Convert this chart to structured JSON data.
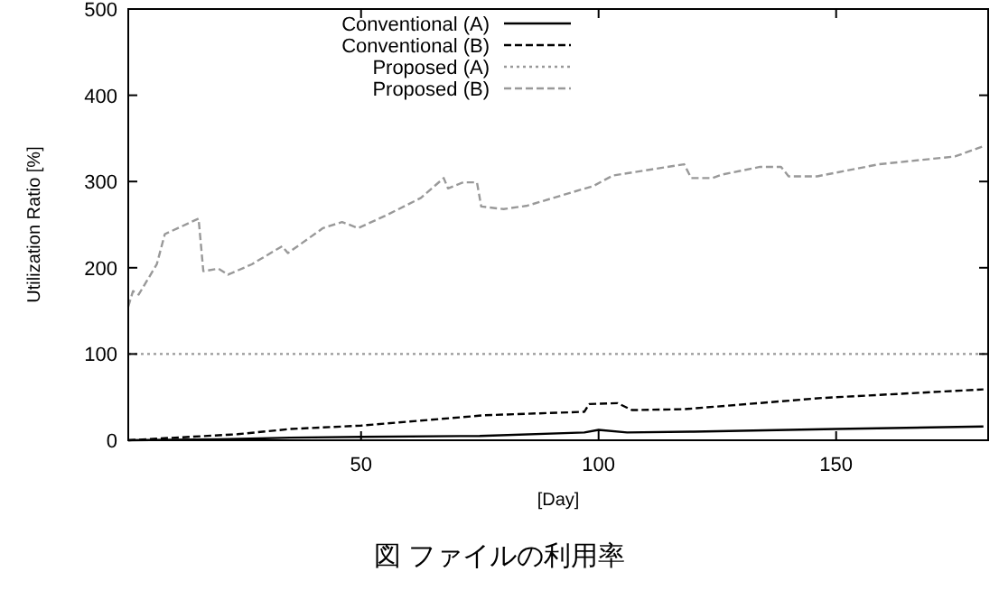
{
  "chart_data": {
    "type": "line",
    "xlabel": "[Day]",
    "ylabel": "Utilization Ratio [%]",
    "annotations": [
      "図 ファイルの利用率"
    ],
    "xlim": [
      1,
      182
    ],
    "ylim": [
      0,
      500
    ],
    "xticks": [
      50,
      100,
      150
    ],
    "yticks": [
      0,
      100,
      200,
      300,
      400,
      500
    ],
    "grid": false,
    "legend": "top left",
    "series": [
      {
        "name": "Conventional (A)",
        "color": "#000000",
        "line_style": "solid",
        "x": [
          1,
          20,
          35,
          50,
          75,
          97,
          100,
          106,
          120,
          150,
          181
        ],
        "values": [
          0,
          1,
          3,
          4,
          5,
          9,
          12,
          9,
          10,
          13,
          16
        ]
      },
      {
        "name": "Conventional (B)",
        "color": "#000000",
        "line_style": "dashed",
        "x": [
          1,
          24,
          35,
          50,
          76,
          97,
          98,
          104,
          107,
          118,
          147,
          181
        ],
        "values": [
          0,
          7,
          13,
          17,
          29,
          33,
          42,
          43,
          35,
          36,
          49,
          59
        ]
      },
      {
        "name": "Proposed (A)",
        "color": "#999999",
        "line_style": "dotted",
        "x": [
          1,
          182
        ],
        "values": [
          100,
          100
        ]
      },
      {
        "name": "Proposed (B)",
        "color": "#999999",
        "line_style": "dashed",
        "x": [
          1,
          2,
          3.2,
          7,
          8.7,
          15.8,
          16.8,
          20,
          22,
          27,
          33.4,
          34.6,
          42,
          46,
          49.4,
          55,
          62.6,
          67.4,
          68.3,
          71.5,
          74.4,
          75.3,
          80,
          85,
          99,
          103,
          118,
          119.5,
          124,
          126,
          134,
          138.4,
          140,
          146,
          159,
          175,
          181
        ],
        "values": [
          155,
          173,
          169,
          204,
          239,
          257,
          196,
          199,
          192,
          204,
          225,
          217,
          246,
          253,
          246,
          260,
          281,
          304,
          292,
          299,
          299,
          271,
          268,
          272,
          295,
          307,
          320,
          304,
          304,
          308,
          317,
          317,
          306,
          306,
          320,
          329,
          341
        ]
      }
    ]
  }
}
